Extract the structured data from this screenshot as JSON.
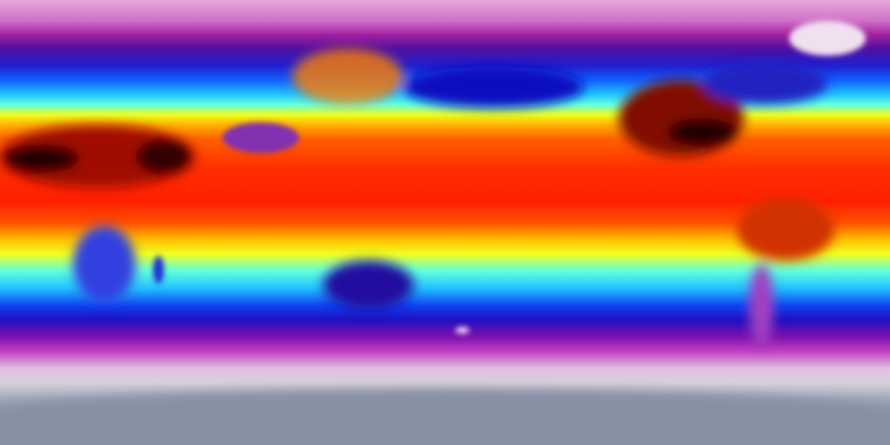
{
  "map": {
    "projection": "equirectangular",
    "colorscale": [
      "#8890a4",
      "#e0c0e0",
      "#a020a0",
      "#2020d0",
      "#20c0ff",
      "#f0ff20",
      "#ff6000",
      "#ff2000",
      "#200000"
    ]
  }
}
